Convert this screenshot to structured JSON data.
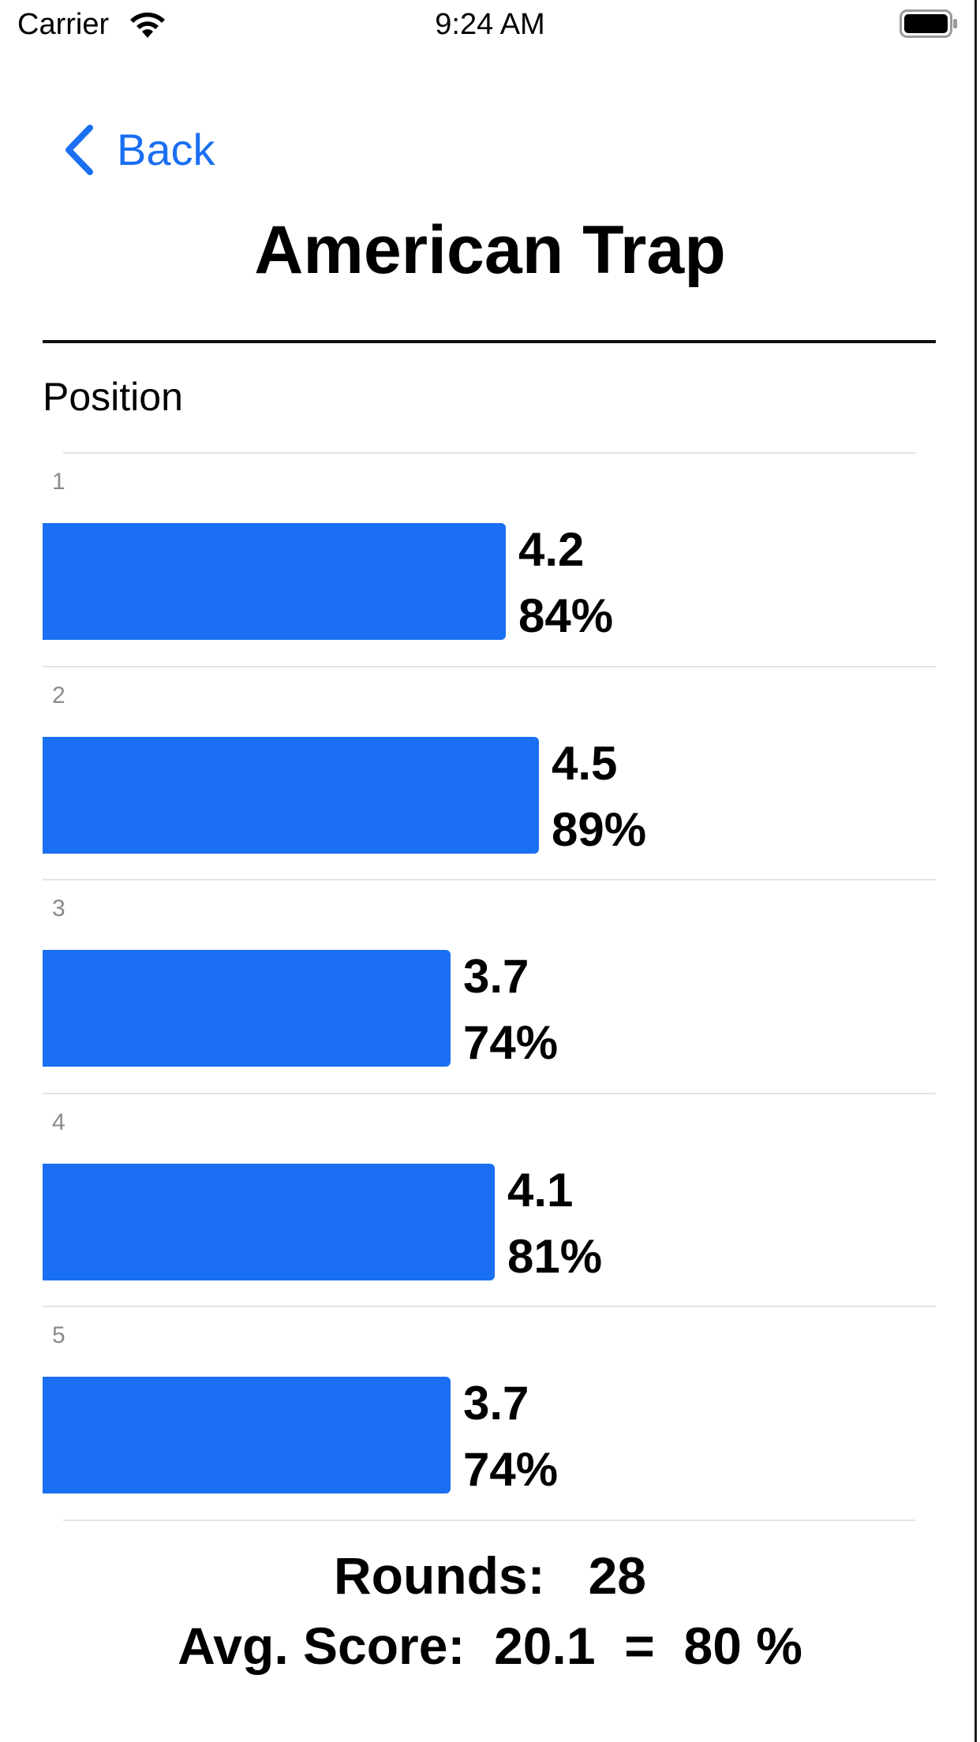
{
  "status_bar": {
    "carrier": "Carrier",
    "time": "9:24 AM",
    "icons": [
      "wifi-icon",
      "battery-icon"
    ]
  },
  "nav": {
    "back_label": "Back",
    "back_icon": "chevron-left-icon"
  },
  "title": "American Trap",
  "section_label": "Position",
  "accent_color": "#1a6ff2",
  "chart_data": {
    "type": "bar",
    "orientation": "horizontal",
    "categories": [
      "1",
      "2",
      "3",
      "4",
      "5"
    ],
    "series": [
      {
        "values": [
          4.2,
          4.5,
          3.7,
          4.1,
          3.7
        ],
        "percent_labels": [
          "84%",
          "89%",
          "74%",
          "81%",
          "74%"
        ]
      }
    ],
    "xlim": [
      0,
      5
    ],
    "grid": false,
    "color": "#1a6ff2"
  },
  "footer": {
    "rounds_label": "Rounds:",
    "rounds_value": "28",
    "avg_label": "Avg. Score:",
    "avg_value": "20.1",
    "equals": "=",
    "avg_percent": "80 %"
  }
}
